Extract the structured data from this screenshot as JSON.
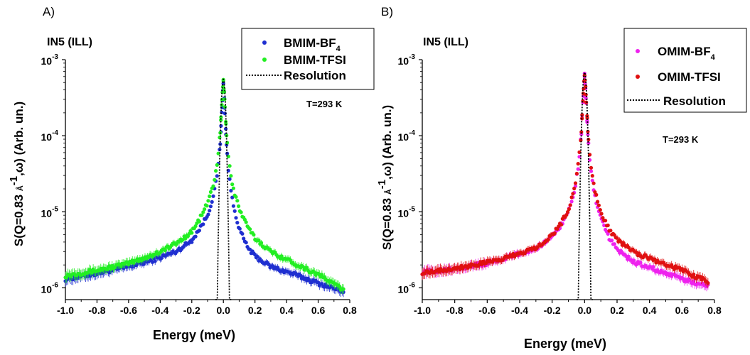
{
  "chart_data": [
    {
      "type": "scatter",
      "panel_label": "A)",
      "instrument": "IN5 (ILL)",
      "temperature": "T=293 K",
      "xlabel": "Energy (meV)",
      "ylabel": "S(Q=0.83 Å-1,ω) (Arb. un.)",
      "ylabel_parts": {
        "pre": "S(Q=0.83 ",
        "unit": "Å",
        "sup": "-1",
        "post": ",ω)  (Arb. un.)"
      },
      "xlim": [
        -1.0,
        0.8
      ],
      "ylim": [
        7e-07,
        0.001
      ],
      "yscale": "log",
      "xticks": [
        "-1.0",
        "-0.8",
        "-0.6",
        "-0.4",
        "-0.2",
        "0.0",
        "0.2",
        "0.4",
        "0.6",
        "0.8"
      ],
      "yticks": [
        {
          "base": "10",
          "exp": "-6",
          "value": 1e-06
        },
        {
          "base": "10",
          "exp": "-5",
          "value": 1e-05
        },
        {
          "base": "10",
          "exp": "-4",
          "value": 0.0001
        },
        {
          "base": "10",
          "exp": "-3",
          "value": 0.001
        }
      ],
      "legend_position": "top-right",
      "series": [
        {
          "name": "BMIM-BF",
          "subscript": "4",
          "color": "#1f2fd0",
          "marker": "point",
          "x_range": [
            -1.0,
            0.76
          ],
          "peak": 0.00048,
          "left_wing": [
            [
              0.0,
              0.00048
            ],
            [
              0.006,
              0.0003
            ],
            [
              0.012,
              0.00017
            ],
            [
              0.02,
              8e-05
            ],
            [
              0.035,
              3.5e-05
            ],
            [
              0.06,
              1.7e-05
            ],
            [
              0.1,
              9e-06
            ],
            [
              0.15,
              6e-06
            ],
            [
              0.2,
              4.2e-06
            ],
            [
              0.3,
              3e-06
            ],
            [
              0.45,
              2.3e-06
            ],
            [
              0.6,
              1.9e-06
            ],
            [
              0.8,
              1.55e-06
            ],
            [
              1.0,
              1.3e-06
            ]
          ],
          "right_wing": [
            [
              0.0,
              0.00048
            ],
            [
              0.006,
              0.0003
            ],
            [
              0.012,
              0.00016
            ],
            [
              0.02,
              7.5e-05
            ],
            [
              0.035,
              3e-05
            ],
            [
              0.06,
              1.3e-05
            ],
            [
              0.1,
              6e-06
            ],
            [
              0.15,
              3.5e-06
            ],
            [
              0.2,
              2.6e-06
            ],
            [
              0.3,
              1.9e-06
            ],
            [
              0.45,
              1.5e-06
            ],
            [
              0.6,
              1.15e-06
            ],
            [
              0.76,
              9e-07
            ]
          ]
        },
        {
          "name": "BMIM-TFSI",
          "subscript": "",
          "color": "#22ee22",
          "marker": "point",
          "x_range": [
            -1.0,
            0.76
          ],
          "peak": 0.00052,
          "left_wing": [
            [
              0.0,
              0.00052
            ],
            [
              0.006,
              0.00036
            ],
            [
              0.012,
              0.00022
            ],
            [
              0.02,
              0.00011
            ],
            [
              0.035,
              5e-05
            ],
            [
              0.06,
              2.4e-05
            ],
            [
              0.1,
              1.3e-05
            ],
            [
              0.15,
              8e-06
            ],
            [
              0.2,
              5.5e-06
            ],
            [
              0.3,
              3.8e-06
            ],
            [
              0.45,
              2.7e-06
            ],
            [
              0.6,
              2.1e-06
            ],
            [
              0.8,
              1.7e-06
            ],
            [
              1.0,
              1.45e-06
            ]
          ],
          "right_wing": [
            [
              0.0,
              0.00052
            ],
            [
              0.006,
              0.00036
            ],
            [
              0.012,
              0.00021
            ],
            [
              0.02,
              0.0001
            ],
            [
              0.035,
              4.6e-05
            ],
            [
              0.06,
              2.1e-05
            ],
            [
              0.1,
              1.1e-05
            ],
            [
              0.15,
              6.5e-06
            ],
            [
              0.2,
              4.5e-06
            ],
            [
              0.3,
              3e-06
            ],
            [
              0.45,
              2.1e-06
            ],
            [
              0.6,
              1.5e-06
            ],
            [
              0.76,
              9.5e-07
            ]
          ]
        },
        {
          "name": "Resolution",
          "subscript": "",
          "color": "#000000",
          "marker": "dotted-line",
          "x_range": [
            -0.05,
            0.05
          ],
          "peak": 0.00055,
          "sigma": 0.0105
        }
      ]
    },
    {
      "type": "scatter",
      "panel_label": "B)",
      "instrument": "IN5 (ILL)",
      "temperature": "T=293 K",
      "xlabel": "Energy (meV)",
      "ylabel": "S(Q=0.83 Å-1,ω) (Arb. un.)",
      "ylabel_parts": {
        "pre": "S(Q=0.83 ",
        "unit": "Å",
        "sup": "-1",
        "post": ",ω)  (Arb. un.)"
      },
      "xlim": [
        -1.0,
        0.8
      ],
      "ylim": [
        7e-07,
        0.001
      ],
      "yscale": "log",
      "xticks": [
        "-1.0",
        "-0.8",
        "-0.6",
        "-0.4",
        "-0.2",
        "0.0",
        "0.2",
        "0.4",
        "0.6",
        "0.8"
      ],
      "yticks": [
        {
          "base": "10",
          "exp": "-6",
          "value": 1e-06
        },
        {
          "base": "10",
          "exp": "-5",
          "value": 1e-05
        },
        {
          "base": "10",
          "exp": "-4",
          "value": 0.0001
        },
        {
          "base": "10",
          "exp": "-3",
          "value": 0.001
        }
      ],
      "legend_position": "top-right",
      "series": [
        {
          "name": "OMIM-BF",
          "subscript": "4",
          "color": "#ee22ee",
          "marker": "point",
          "x_range": [
            -1.0,
            0.76
          ],
          "peak": 0.00063,
          "left_wing": [
            [
              0.0,
              0.00063
            ],
            [
              0.006,
              0.0004
            ],
            [
              0.012,
              0.00023
            ],
            [
              0.02,
              0.00011
            ],
            [
              0.035,
              4.5e-05
            ],
            [
              0.06,
              2e-05
            ],
            [
              0.1,
              1e-05
            ],
            [
              0.15,
              6.5e-06
            ],
            [
              0.2,
              4.7e-06
            ],
            [
              0.3,
              3.3e-06
            ],
            [
              0.45,
              2.6e-06
            ],
            [
              0.6,
              2.1e-06
            ],
            [
              0.8,
              1.8e-06
            ],
            [
              1.0,
              1.6e-06
            ]
          ],
          "right_wing": [
            [
              0.0,
              0.00063
            ],
            [
              0.006,
              0.0004
            ],
            [
              0.012,
              0.00022
            ],
            [
              0.02,
              0.0001
            ],
            [
              0.035,
              4e-05
            ],
            [
              0.06,
              1.7e-05
            ],
            [
              0.1,
              8e-06
            ],
            [
              0.15,
              4.6e-06
            ],
            [
              0.2,
              3.2e-06
            ],
            [
              0.3,
              2.2e-06
            ],
            [
              0.45,
              1.7e-06
            ],
            [
              0.6,
              1.3e-06
            ],
            [
              0.76,
              1.05e-06
            ]
          ]
        },
        {
          "name": "OMIM-TFSI",
          "subscript": "",
          "color": "#e01010",
          "marker": "point",
          "x_range": [
            -1.0,
            0.76
          ],
          "peak": 0.00065,
          "left_wing": [
            [
              0.0,
              0.00065
            ],
            [
              0.006,
              0.00042
            ],
            [
              0.012,
              0.00024
            ],
            [
              0.02,
              0.000115
            ],
            [
              0.035,
              4.8e-05
            ],
            [
              0.06,
              2.1e-05
            ],
            [
              0.1,
              1.05e-05
            ],
            [
              0.15,
              6.8e-06
            ],
            [
              0.2,
              4.9e-06
            ],
            [
              0.3,
              3.4e-06
            ],
            [
              0.45,
              2.6e-06
            ],
            [
              0.6,
              2.15e-06
            ],
            [
              0.8,
              1.8e-06
            ],
            [
              1.0,
              1.6e-06
            ]
          ],
          "right_wing": [
            [
              0.0,
              0.00065
            ],
            [
              0.006,
              0.00042
            ],
            [
              0.012,
              0.00024
            ],
            [
              0.02,
              0.00011
            ],
            [
              0.035,
              4.6e-05
            ],
            [
              0.06,
              2e-05
            ],
            [
              0.1,
              1e-05
            ],
            [
              0.15,
              6e-06
            ],
            [
              0.2,
              4.3e-06
            ],
            [
              0.3,
              3e-06
            ],
            [
              0.45,
              2.2e-06
            ],
            [
              0.6,
              1.7e-06
            ],
            [
              0.76,
              1.2e-06
            ]
          ]
        },
        {
          "name": "Resolution",
          "subscript": "",
          "color": "#000000",
          "marker": "dotted-line",
          "x_range": [
            -0.05,
            0.05
          ],
          "peak": 0.00068,
          "sigma": 0.0105
        }
      ]
    }
  ]
}
